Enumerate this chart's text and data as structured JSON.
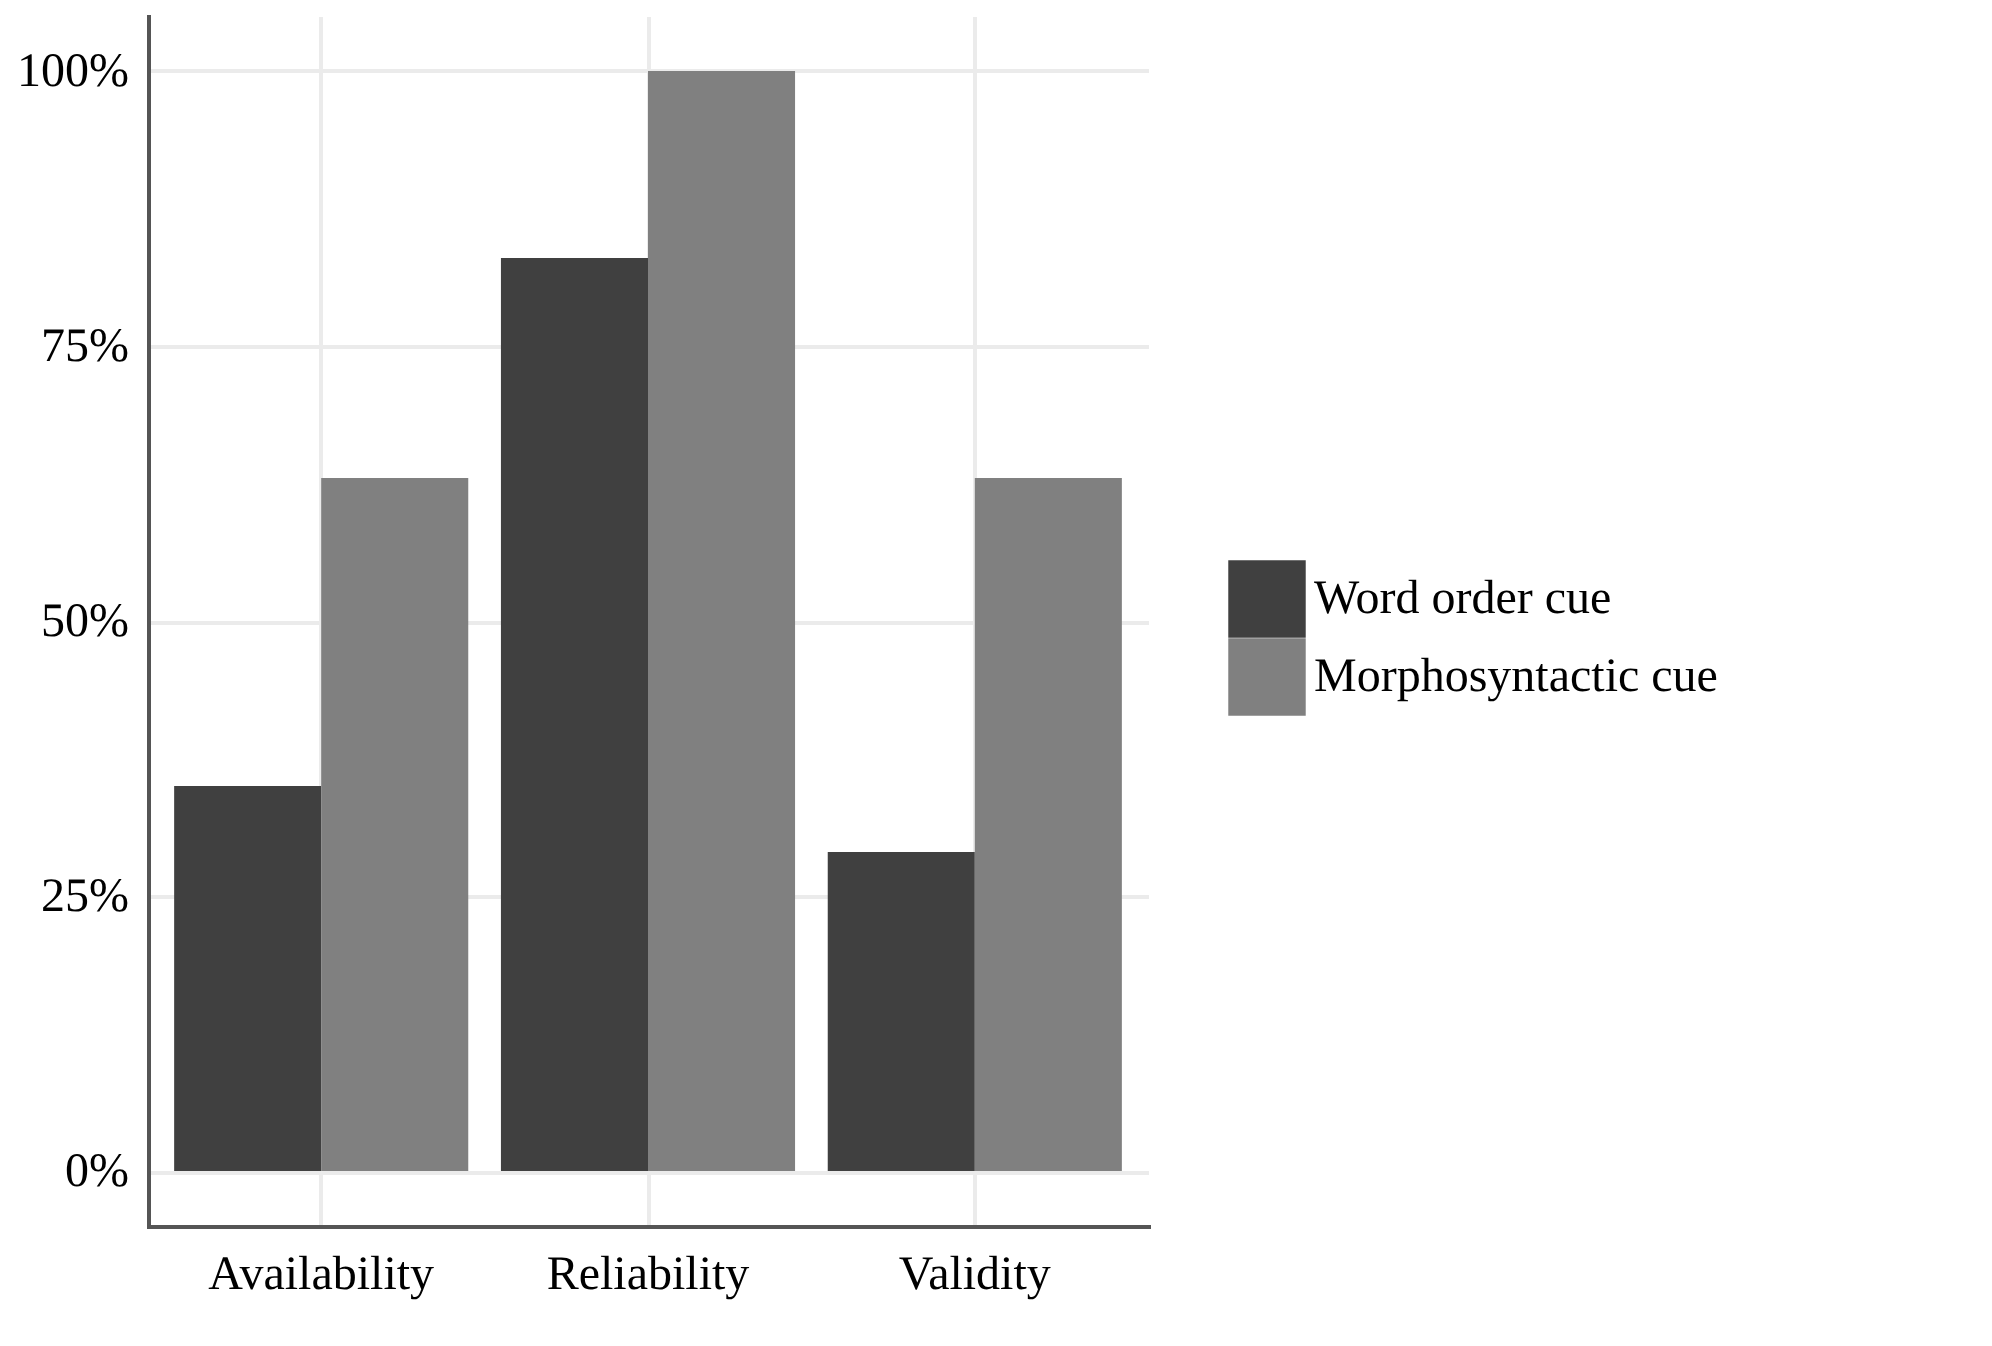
{
  "chart_data": {
    "type": "bar",
    "categories": [
      "Availability",
      "Reliability",
      "Validity"
    ],
    "series": [
      {
        "name": "Word order cue",
        "color": "#404040",
        "values": [
          35,
          83,
          29
        ]
      },
      {
        "name": "Morphosyntactic cue",
        "color": "#808080",
        "values": [
          63,
          100,
          63
        ]
      }
    ],
    "ylim": [
      -5,
      105
    ],
    "yticks": [
      {
        "value": 0,
        "label": "0%"
      },
      {
        "value": 25,
        "label": "25%"
      },
      {
        "value": 50,
        "label": "50%"
      },
      {
        "value": 75,
        "label": "75%"
      },
      {
        "value": 100,
        "label": "100%"
      }
    ],
    "grid": true,
    "legend": "right"
  }
}
